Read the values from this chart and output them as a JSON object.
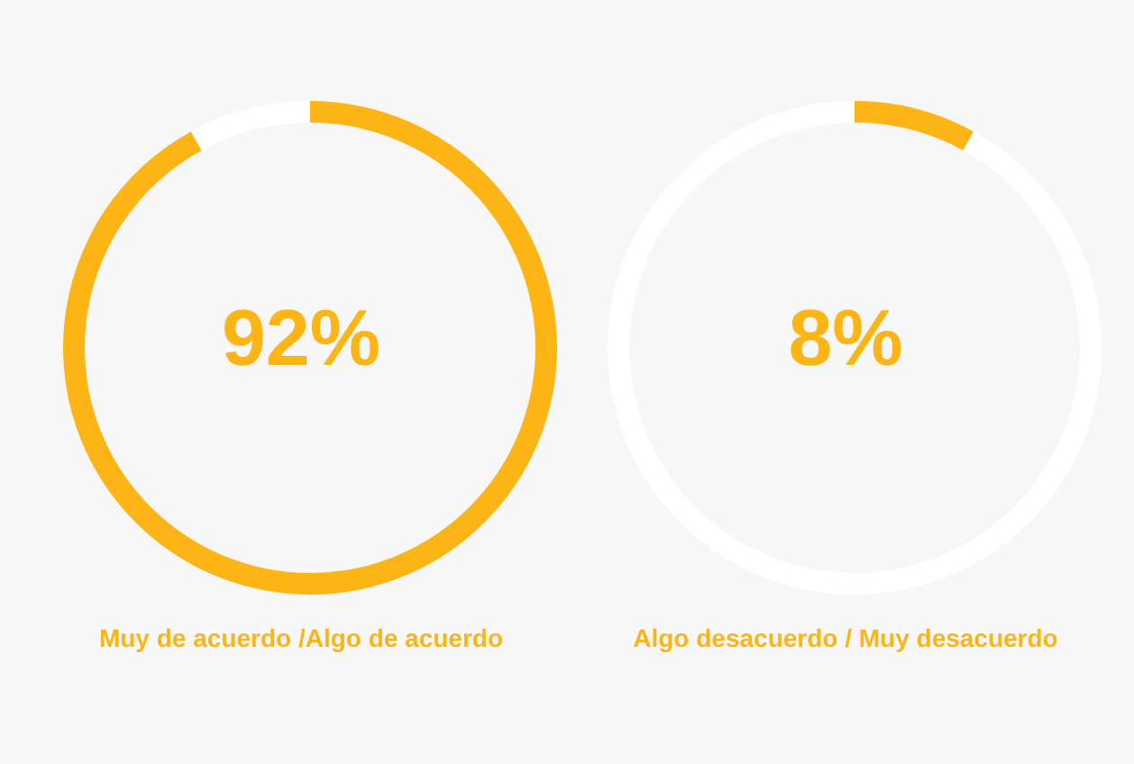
{
  "chart_data": [
    {
      "type": "donut",
      "title": "Muy de acuerdo /Algo de acuerdo",
      "categories": [
        null,
        null
      ],
      "values": [
        92,
        8
      ],
      "colors": [
        "#fdb515",
        "#ffffff"
      ],
      "annotations": [
        "92%"
      ]
    },
    {
      "type": "donut",
      "title": "Algo desacuerdo / Muy desacuerdo",
      "categories": [
        null,
        null
      ],
      "values": [
        8,
        92
      ],
      "colors": [
        "#fdb515",
        "#ffffff"
      ],
      "annotations": [
        "8%"
      ]
    }
  ]
}
